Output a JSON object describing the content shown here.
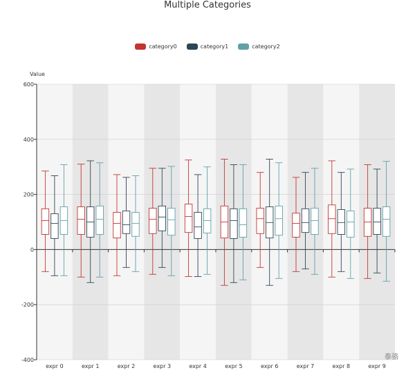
{
  "chart_data": {
    "type": "boxplot",
    "title": "Multiple Categories",
    "ylabel": "Value",
    "xlabel": "",
    "ylim": [
      -400,
      600
    ],
    "yticks": [
      600,
      400,
      200,
      0,
      -200,
      -400
    ],
    "categories": [
      "expr 0",
      "expr 1",
      "expr 2",
      "expr 3",
      "expr 4",
      "expr 5",
      "expr 6",
      "expr 7",
      "expr 8",
      "expr 9"
    ],
    "legend_position": "top-center",
    "series": [
      {
        "name": "category0",
        "color": "#c23531",
        "boxes": [
          [
            -80,
            55,
            105,
            148,
            285
          ],
          [
            -100,
            55,
            110,
            155,
            310
          ],
          [
            -95,
            42,
            95,
            135,
            272
          ],
          [
            -90,
            58,
            110,
            150,
            295
          ],
          [
            -98,
            62,
            120,
            165,
            325
          ],
          [
            -130,
            42,
            100,
            158,
            328
          ],
          [
            -65,
            58,
            112,
            150,
            280
          ],
          [
            -80,
            45,
            95,
            132,
            262
          ],
          [
            -100,
            58,
            112,
            162,
            322
          ],
          [
            -105,
            48,
            100,
            150,
            308
          ]
        ]
      },
      {
        "name": "category1",
        "color": "#2f4554",
        "boxes": [
          [
            -95,
            40,
            95,
            130,
            268
          ],
          [
            -120,
            45,
            100,
            155,
            322
          ],
          [
            -65,
            58,
            90,
            140,
            262
          ],
          [
            -65,
            68,
            118,
            158,
            295
          ],
          [
            -98,
            40,
            82,
            135,
            272
          ],
          [
            -120,
            40,
            105,
            148,
            308
          ],
          [
            -130,
            42,
            98,
            155,
            328
          ],
          [
            -70,
            62,
            98,
            148,
            280
          ],
          [
            -80,
            55,
            98,
            145,
            280
          ],
          [
            -85,
            55,
            100,
            150,
            292
          ]
        ]
      },
      {
        "name": "category2",
        "color": "#61a0a8",
        "boxes": [
          [
            -95,
            55,
            105,
            155,
            308
          ],
          [
            -100,
            55,
            110,
            158,
            315
          ],
          [
            -80,
            48,
            95,
            135,
            268
          ],
          [
            -95,
            52,
            108,
            150,
            302
          ],
          [
            -90,
            60,
            105,
            148,
            300
          ],
          [
            -110,
            45,
            90,
            148,
            308
          ],
          [
            -105,
            52,
            112,
            158,
            315
          ],
          [
            -90,
            55,
            105,
            150,
            295
          ],
          [
            -105,
            45,
            100,
            140,
            292
          ],
          [
            -115,
            48,
            110,
            155,
            320
          ]
        ]
      }
    ],
    "grid": true
  },
  "watermark": "泰骆"
}
